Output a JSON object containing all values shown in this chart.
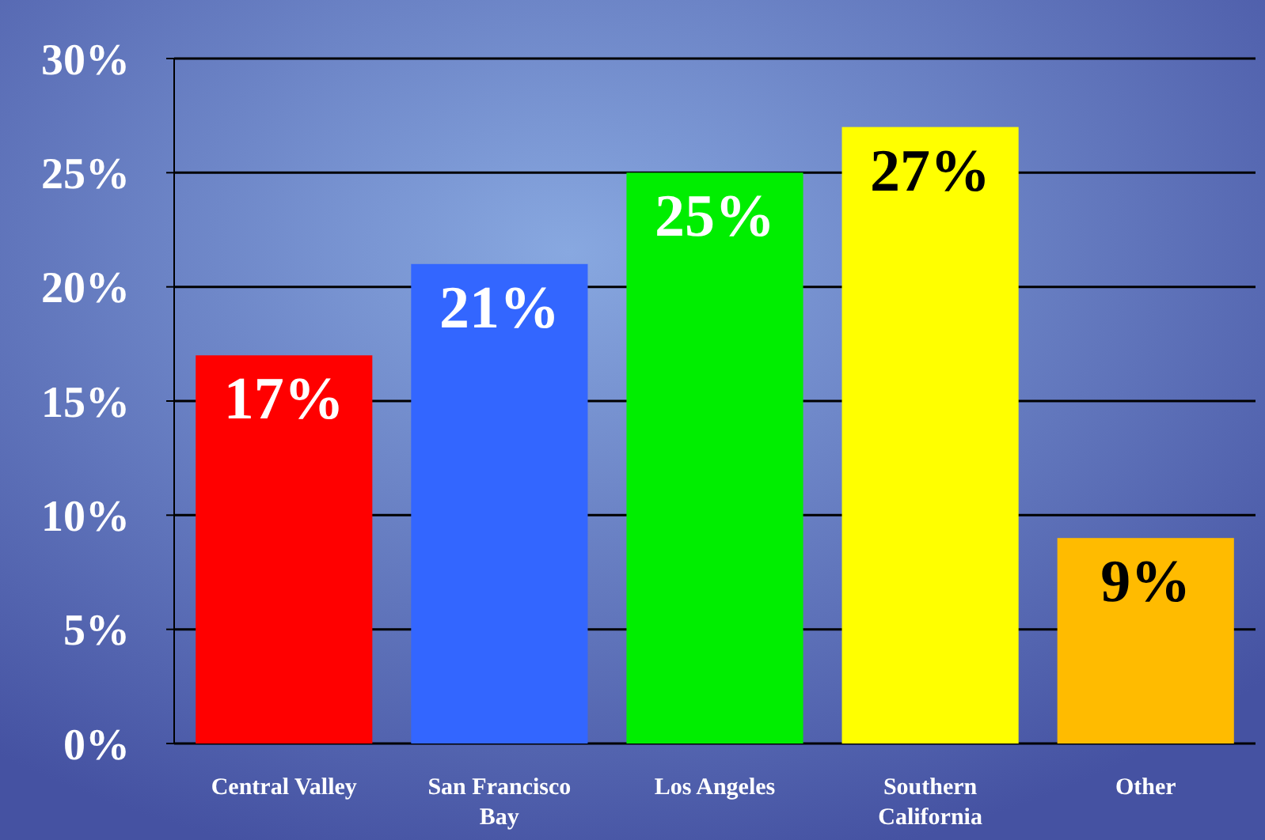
{
  "chart_data": {
    "type": "bar",
    "categories": [
      "Central Valley",
      "San Francisco Bay",
      "Los Angeles",
      "Southern California",
      "Other"
    ],
    "values": [
      17,
      21,
      25,
      27,
      9
    ],
    "colors": [
      "#ff0000",
      "#3366ff",
      "#00ee00",
      "#ffff00",
      "#ffbb00"
    ],
    "value_labels": [
      "17%",
      "21%",
      "25%",
      "27%",
      "9%"
    ],
    "ylim": [
      0,
      30
    ],
    "yticks": [
      {
        "value": 0,
        "label": "0%"
      },
      {
        "value": 5,
        "label": "5%"
      },
      {
        "value": 10,
        "label": "10%"
      },
      {
        "value": 15,
        "label": "15%"
      },
      {
        "value": 20,
        "label": "20%"
      },
      {
        "value": 25,
        "label": "25%"
      },
      {
        "value": 30,
        "label": "30%"
      }
    ],
    "grid": "y"
  }
}
